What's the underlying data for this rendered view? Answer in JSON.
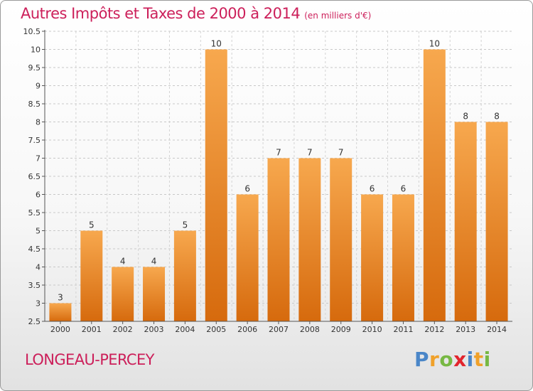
{
  "title": "Autres Impôts et Taxes de 2000 à 2014",
  "unit_note": "(en milliers d'€)",
  "place": "LONGEAU-PERCEY",
  "logo": {
    "letters": [
      "P",
      "r",
      "o",
      "x",
      "i",
      "t",
      "i"
    ],
    "colors": [
      "#4a86c8",
      "#f0a12a",
      "#77b843",
      "#e2252d",
      "#4a86c8",
      "#f0a12a",
      "#77b843"
    ]
  },
  "chart_data": {
    "type": "bar",
    "title": "Autres Impôts et Taxes de 2000 à 2014",
    "categories": [
      "2000",
      "2001",
      "2002",
      "2003",
      "2004",
      "2005",
      "2006",
      "2007",
      "2008",
      "2009",
      "2010",
      "2011",
      "2012",
      "2013",
      "2014"
    ],
    "values": [
      3,
      5,
      4,
      4,
      5,
      10,
      6,
      7,
      7,
      7,
      6,
      6,
      10,
      8,
      8
    ],
    "value_labels": [
      "3",
      "5",
      "4",
      "4",
      "5",
      "10",
      "6",
      "7",
      "7",
      "7",
      "6",
      "6",
      "10",
      "8",
      "8"
    ],
    "ylim": [
      2.5,
      10.5
    ],
    "yticks": [
      "2.5",
      "3",
      "3.5",
      "4",
      "4.5",
      "5",
      "5.5",
      "6",
      "6.5",
      "7",
      "7.5",
      "8",
      "8.5",
      "9",
      "9.5",
      "10",
      "10.5"
    ],
    "grid": true,
    "bar_color": "#f29a3c"
  }
}
